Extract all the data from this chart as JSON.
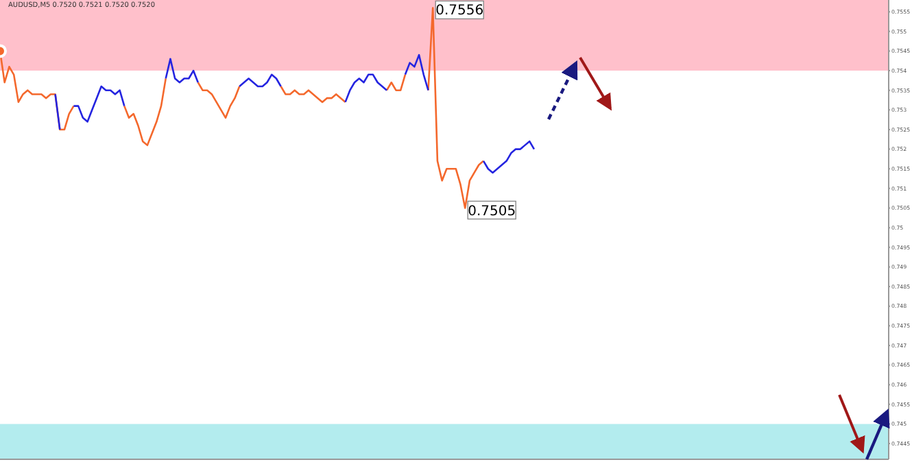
{
  "chart_data": {
    "type": "line",
    "title": "AUDUSD,M5  0.7520 0.7521 0.7520 0.7520",
    "categories": [
      null,
      null,
      null,
      null,
      null,
      null,
      null,
      null,
      null,
      null,
      null,
      null,
      null,
      null,
      null,
      null,
      null,
      null,
      null,
      null,
      null,
      null,
      null,
      null,
      null,
      null,
      null,
      null,
      null,
      null,
      null,
      null,
      null,
      null,
      null,
      null,
      null,
      null,
      null,
      null,
      null,
      null,
      null,
      null,
      null,
      null,
      null,
      null,
      null,
      null,
      null,
      null,
      null,
      null,
      null,
      null,
      null,
      null,
      null,
      null,
      null,
      null,
      null,
      null,
      null,
      null,
      null,
      null,
      null,
      null,
      null,
      null,
      null,
      null,
      null,
      null,
      null,
      null,
      null,
      null,
      null,
      null,
      null,
      null,
      null,
      null,
      null,
      null,
      null,
      null,
      null,
      null,
      null,
      null,
      null,
      null,
      null,
      null,
      null,
      null,
      null,
      null,
      null,
      null,
      null,
      null,
      null,
      null,
      null,
      null,
      null,
      null,
      null,
      null,
      null,
      null,
      null,
      null,
      null,
      null,
      null,
      null,
      null,
      null,
      null,
      null,
      null,
      null,
      null,
      null,
      null,
      null,
      null,
      null,
      null,
      null,
      null,
      null,
      null,
      null,
      null,
      null,
      null,
      null,
      null,
      null,
      null,
      null,
      null,
      null,
      null,
      null,
      null,
      null,
      null,
      null,
      null,
      null,
      null,
      null,
      null,
      null,
      null,
      null,
      null,
      null,
      null,
      null,
      null,
      null,
      null,
      null,
      null,
      null,
      null,
      null,
      null,
      null,
      null,
      null,
      null,
      null,
      null,
      null,
      null,
      null,
      null,
      null,
      null,
      null,
      null,
      null,
      null,
      null
    ],
    "series": [
      {
        "color": "#f4682c",
        "values": [
          0.7545,
          0.7537,
          0.7541,
          0.7539,
          0.7532,
          0.7534,
          0.7535,
          0.7534,
          0.7534,
          0.7534,
          0.7533,
          0.7534,
          0.7534,
          0.7525,
          0.7525,
          0.7529,
          0.7531,
          null,
          null,
          null,
          null,
          null,
          null,
          null,
          null,
          null,
          null,
          0.7531,
          0.7528,
          0.7529,
          0.7526,
          0.7522,
          0.7521,
          0.7524,
          0.7527,
          0.7531,
          0.7538,
          null,
          null,
          null,
          null,
          null,
          null,
          0.7537,
          0.7535,
          0.7535,
          0.7534,
          0.7532,
          0.753,
          0.7528,
          0.7531,
          0.7533,
          0.7536,
          null,
          null,
          null,
          null,
          null,
          null,
          null,
          null,
          0.7536,
          0.7534,
          0.7534,
          0.7535,
          0.7534,
          0.7534,
          0.7535,
          0.7534,
          0.7533,
          0.7532,
          0.7533,
          0.7533,
          0.7534,
          0.7533,
          0.7532,
          null,
          null,
          null,
          null,
          null,
          null,
          null,
          null,
          0.7535,
          0.7537,
          0.7535,
          0.7535,
          0.7539,
          null,
          null,
          null,
          null,
          0.7535,
          0.7556,
          0.7517,
          0.7512,
          0.7515,
          0.7515,
          0.7515,
          0.7511,
          0.7505,
          0.7512,
          0.7514,
          0.7516,
          0.7517,
          null,
          null,
          null,
          null,
          null,
          null,
          null,
          null,
          null,
          null,
          null,
          null,
          null,
          null,
          null,
          null,
          null,
          null,
          null,
          null,
          null,
          null,
          null,
          null,
          null,
          null,
          null,
          null,
          null,
          null,
          null,
          null,
          null,
          null,
          null,
          null,
          null,
          null,
          null,
          null,
          null,
          null,
          null,
          null,
          null,
          null,
          null,
          null,
          null,
          null,
          null,
          null,
          null,
          null,
          null,
          null,
          null,
          null,
          null,
          null,
          null,
          null,
          null,
          null,
          null,
          null,
          null,
          null,
          null,
          null,
          null,
          null,
          null,
          null,
          null,
          null,
          null,
          null,
          null,
          null,
          null,
          null,
          null,
          null,
          null,
          null,
          null,
          null
        ]
      },
      {
        "color": "#2424e0",
        "values": [
          null,
          null,
          null,
          null,
          null,
          null,
          null,
          null,
          null,
          null,
          null,
          null,
          0.7534,
          0.7525,
          null,
          null,
          0.7531,
          0.7531,
          0.7528,
          0.7527,
          0.753,
          0.7533,
          0.7536,
          0.7535,
          0.7535,
          0.7534,
          0.7535,
          0.7531,
          null,
          null,
          null,
          null,
          null,
          null,
          null,
          null,
          0.7538,
          0.7543,
          0.7538,
          0.7537,
          0.7538,
          0.7538,
          0.754,
          0.7537,
          null,
          null,
          null,
          null,
          null,
          null,
          null,
          null,
          0.7536,
          0.7537,
          0.7538,
          0.7537,
          0.7536,
          0.7536,
          0.7537,
          0.7539,
          0.7538,
          0.7536,
          null,
          null,
          null,
          null,
          null,
          null,
          null,
          null,
          null,
          null,
          null,
          null,
          null,
          0.7532,
          0.7535,
          0.7537,
          0.7538,
          0.7537,
          0.7539,
          0.7539,
          0.7537,
          0.7536,
          0.7535,
          null,
          null,
          null,
          0.7539,
          0.7542,
          0.7541,
          0.7544,
          0.7539,
          0.7535,
          null,
          null,
          null,
          null,
          null,
          null,
          null,
          null,
          null,
          null,
          null,
          0.7517,
          0.7515,
          0.7514,
          0.7515,
          0.7516,
          0.7517,
          0.7519,
          0.752,
          0.752,
          0.7521,
          0.7522,
          0.752,
          null,
          null,
          null,
          null,
          null,
          null,
          null,
          null,
          null,
          null,
          null,
          null,
          null,
          null,
          null,
          null,
          null,
          null,
          null,
          null,
          null,
          null,
          null,
          null,
          null,
          null,
          null,
          null,
          null,
          null,
          null,
          null,
          null,
          null,
          null,
          null,
          null,
          null,
          null,
          null,
          null,
          null,
          null,
          null,
          null,
          null,
          null,
          null,
          null,
          null,
          null,
          null,
          null,
          null,
          null,
          null,
          null,
          null,
          null,
          null,
          null,
          null,
          null,
          null,
          null,
          null,
          null,
          null,
          null,
          null,
          null,
          null,
          null,
          null,
          null,
          null,
          null
        ]
      }
    ],
    "ylim": [
      0.7441,
      0.7558
    ],
    "yticks": [
      0.7445,
      0.745,
      0.7455,
      0.746,
      0.7465,
      0.747,
      0.7475,
      0.748,
      0.7485,
      0.749,
      0.7495,
      0.75,
      0.7505,
      0.751,
      0.7515,
      0.752,
      0.7525,
      0.753,
      0.7535,
      0.754,
      0.7545,
      0.755,
      0.7555
    ],
    "bands": [
      {
        "axis": "y",
        "from": 0.754,
        "to": 0.7558,
        "color": "#ffc0cb"
      },
      {
        "axis": "y",
        "from": 0.7441,
        "to": 0.745,
        "color": "#b3ecee"
      }
    ],
    "annotations": [
      {
        "text": "0.7556",
        "y": 0.7556
      },
      {
        "text": "0.7505",
        "y": 0.7505
      }
    ],
    "tick_labels": "y",
    "marker": "none",
    "line_style": "solid"
  }
}
